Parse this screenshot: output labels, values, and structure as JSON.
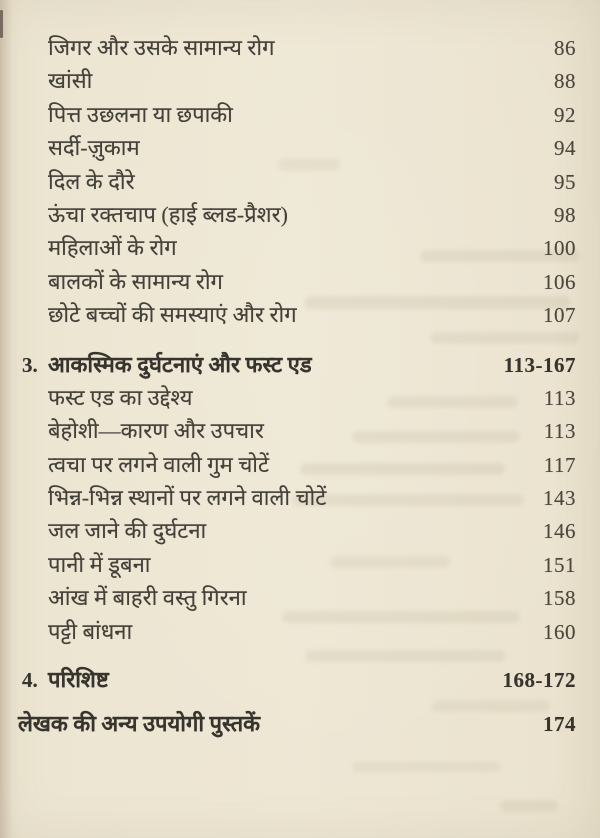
{
  "page": {
    "background_color": "#ece5d1",
    "text_color": "#44403a"
  },
  "toc": {
    "entries": [
      {
        "title": "जिगर और उसके सामान्य रोग",
        "page": "86",
        "level": "sub"
      },
      {
        "title": "खांसी",
        "page": "88",
        "level": "sub"
      },
      {
        "title": "पित्त उछलना या छपाकी",
        "page": "92",
        "level": "sub"
      },
      {
        "title": "सर्दी-ज़ुकाम",
        "page": "94",
        "level": "sub"
      },
      {
        "title": "दिल के दौरे",
        "page": "95",
        "level": "sub"
      },
      {
        "title": "ऊंचा रक्तचाप (हाई ब्लड-प्रैशर)",
        "page": "98",
        "level": "sub"
      },
      {
        "title": "महिलाओं के रोग",
        "page": "100",
        "level": "sub"
      },
      {
        "title": "बालकों के सामान्य रोग",
        "page": "106",
        "level": "sub"
      },
      {
        "title": "छोटे बच्चों की समस्याएं और रोग",
        "page": "107",
        "level": "sub"
      },
      {
        "number": "3.",
        "title": "आकस्मिक दुर्घटनाएं और फस्ट एड",
        "page": "113-167",
        "level": "section"
      },
      {
        "title": "फस्ट एड का उद्देश्य",
        "page": "113",
        "level": "sub"
      },
      {
        "title": "बेहोशी—कारण और उपचार",
        "page": "113",
        "level": "sub"
      },
      {
        "title": "त्वचा पर लगने वाली गुम चोटें",
        "page": "117",
        "level": "sub"
      },
      {
        "title": "भिन्न-भिन्न स्थानों पर लगने वाली चोटें",
        "page": "143",
        "level": "sub"
      },
      {
        "title": "जल जाने की दुर्घटना",
        "page": "146",
        "level": "sub"
      },
      {
        "title": "पानी में डूबना",
        "page": "151",
        "level": "sub"
      },
      {
        "title": "आंख में बाहरी वस्तु गिरना",
        "page": "158",
        "level": "sub"
      },
      {
        "title": "पट्टी बांधना",
        "page": "160",
        "level": "sub"
      },
      {
        "number": "4.",
        "title": "परिशिष्ट",
        "page": "168-172",
        "level": "section"
      },
      {
        "title": "लेखक की अन्य उपयोगी पुस्तकें",
        "page": "174",
        "level": "footer"
      }
    ]
  }
}
